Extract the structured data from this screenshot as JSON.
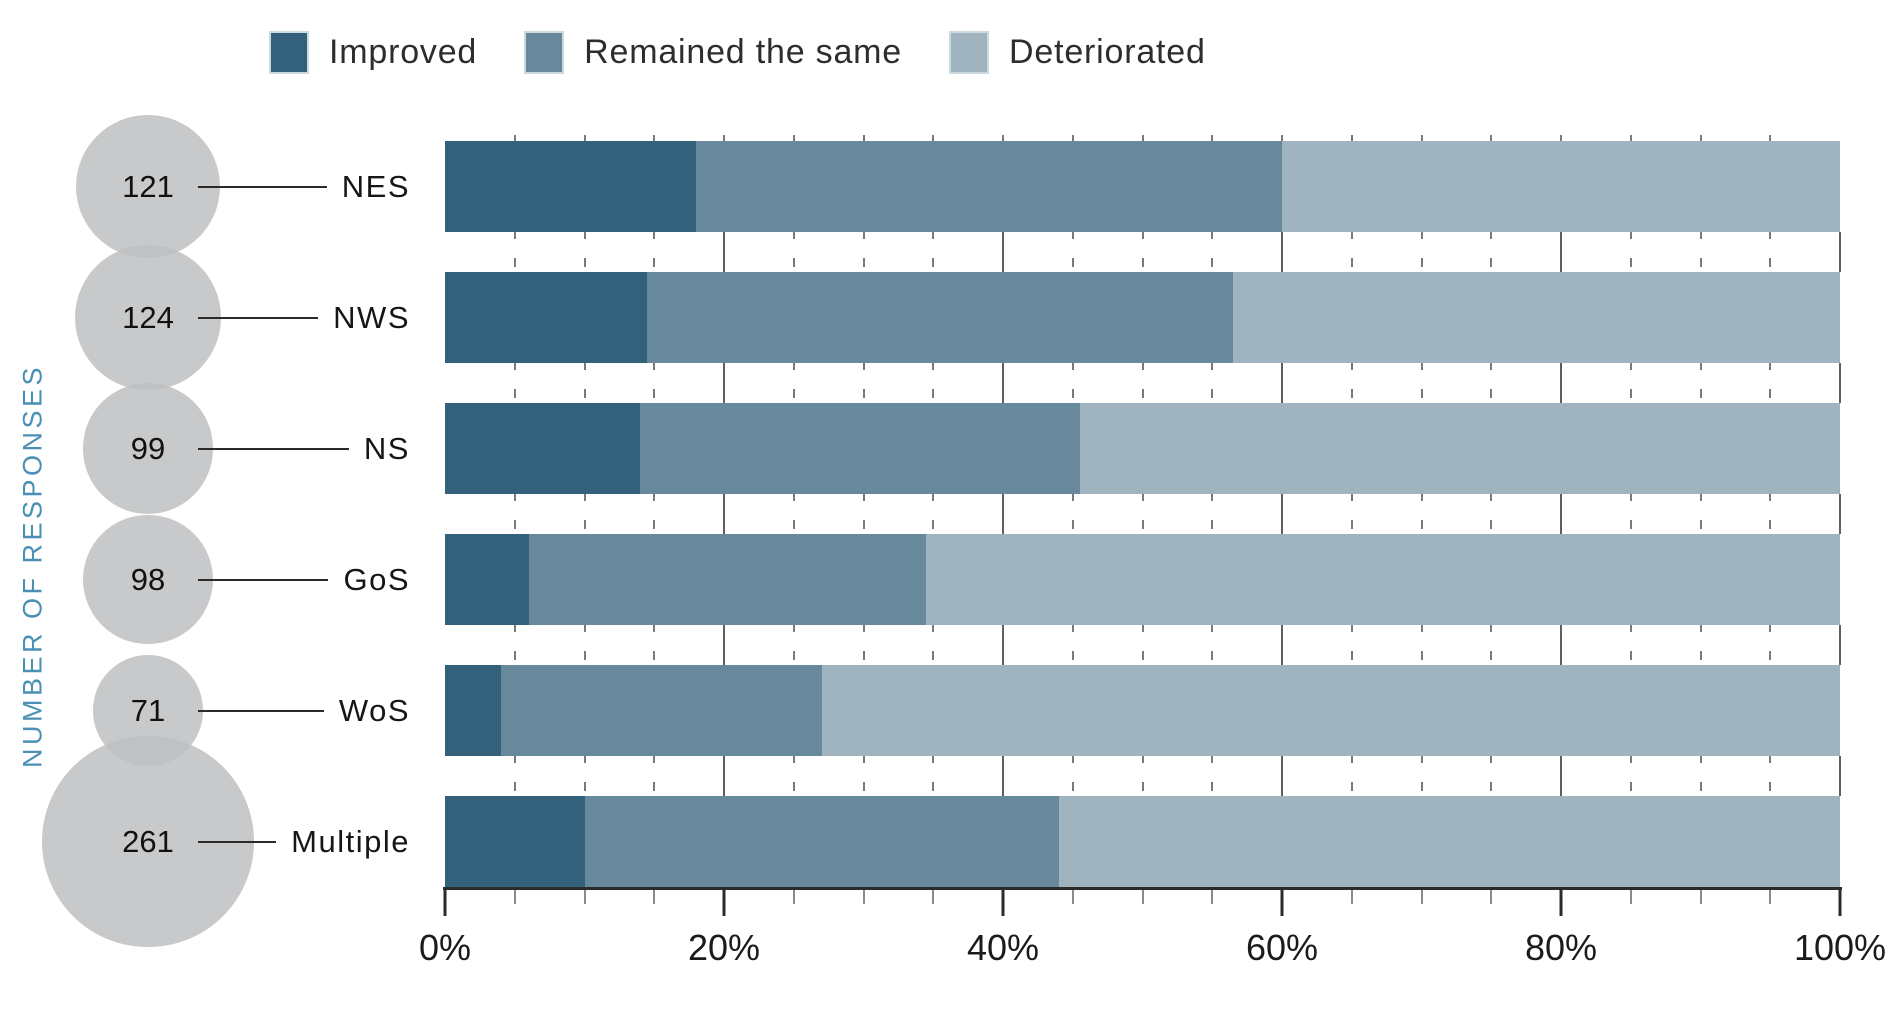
{
  "legend": {
    "items": [
      {
        "label": "Improved",
        "color": "#33607a"
      },
      {
        "label": "Remained the same",
        "color": "#68899c"
      },
      {
        "label": "Deteriorated",
        "color": "#a0b4bf"
      }
    ]
  },
  "y_axis": {
    "title": "NUMBER OF RESPONSES",
    "title_color": "#4a90b5"
  },
  "x_axis": {
    "ticks": [
      {
        "label": "0%",
        "value": 0
      },
      {
        "label": "20%",
        "value": 20
      },
      {
        "label": "40%",
        "value": 40
      },
      {
        "label": "60%",
        "value": 60
      },
      {
        "label": "80%",
        "value": 80
      },
      {
        "label": "100%",
        "value": 100
      }
    ],
    "minor_tick_step": 5
  },
  "bubbles": {
    "color": "#bdc0c2"
  },
  "chart_data": {
    "type": "bar",
    "orientation": "horizontal",
    "stacked": true,
    "units": "percent",
    "title": "",
    "categories": [
      "NES",
      "NWS",
      "NS",
      "GoS",
      "WoS",
      "Multiple"
    ],
    "n_responses": [
      121,
      124,
      99,
      98,
      71,
      261
    ],
    "series": [
      {
        "name": "Improved",
        "color": "#33607a",
        "values": [
          18,
          14.5,
          14,
          6,
          4,
          10
        ]
      },
      {
        "name": "Remained the same",
        "color": "#68899c",
        "values": [
          42,
          42,
          31.5,
          28.5,
          23,
          34
        ]
      },
      {
        "name": "Deteriorated",
        "color": "#a0b4bf",
        "values": [
          40,
          43.5,
          54.5,
          65.5,
          73,
          56
        ]
      }
    ],
    "xlim": [
      0,
      100
    ],
    "legend_position": "top",
    "grid": "minor ticks every 5%, gridlines every 20%"
  }
}
